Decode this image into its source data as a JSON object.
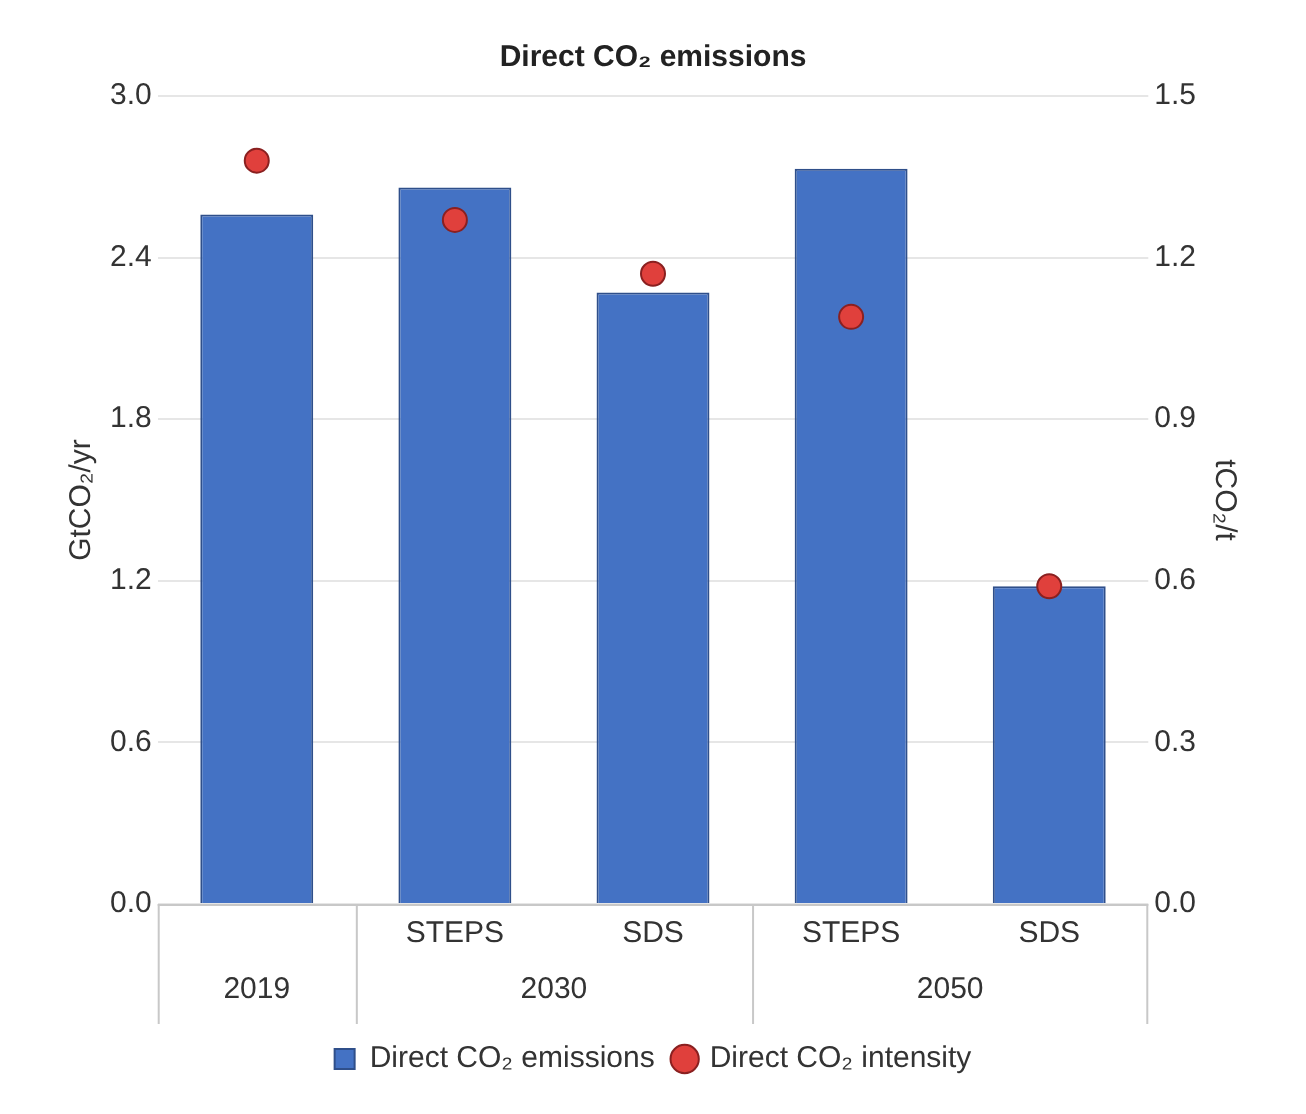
{
  "chart_data": {
    "type": "bar",
    "title": "Direct CO₂ emissions",
    "ylabel": "GtCO₂/yr",
    "y2label": "tCO₂/t",
    "categories": [
      null,
      "STEPS",
      "SDS",
      "STEPS",
      "SDS"
    ],
    "annotations": [
      "2019",
      "2030",
      "2050"
    ],
    "series": [
      {
        "name": "Direct CO₂ emissions",
        "color": "#4472c4",
        "values": [
          2.56,
          2.66,
          2.27,
          2.73,
          1.18
        ]
      },
      {
        "name": "Direct CO₂ intensity",
        "type": "scatter",
        "axis": "y2",
        "color": "#e0403c",
        "values": [
          1.38,
          1.27,
          1.17,
          1.09,
          0.59
        ]
      }
    ],
    "ylim": [
      0,
      3
    ],
    "yticks": [
      {
        "value": 0,
        "label": "0.0"
      },
      {
        "value": 0.6,
        "label": "0.6"
      },
      {
        "value": 1.2,
        "label": "1.2"
      },
      {
        "value": 1.8,
        "label": "1.8"
      },
      {
        "value": 2.4,
        "label": "2.4"
      },
      {
        "value": 3,
        "label": "3.0"
      }
    ],
    "y2lim": [
      0,
      1.5
    ],
    "y2ticks": [
      {
        "value": 0,
        "label": "0.0"
      },
      {
        "value": 0.3,
        "label": "0.3"
      },
      {
        "value": 0.6,
        "label": "0.6"
      },
      {
        "value": 0.9,
        "label": "0.9"
      },
      {
        "value": 1.2,
        "label": "1.2"
      },
      {
        "value": 1.5,
        "label": "1.5"
      }
    ],
    "grid": "y",
    "legend": "bottom",
    "marker": "circle"
  }
}
